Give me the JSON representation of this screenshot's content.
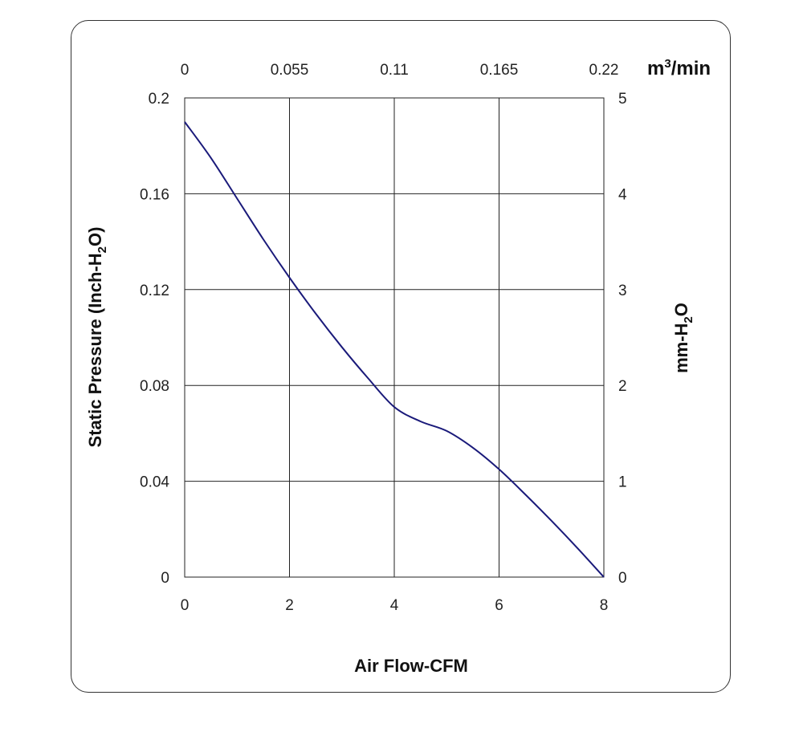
{
  "chart_data": {
    "type": "line",
    "xlabel": "Air Flow-CFM",
    "ylabel": "Static Pressure (Inch-H2O)",
    "ylabel_parts": [
      "Static Pressure (Inch-H",
      "2",
      "O)"
    ],
    "secondary_xlabel": "m3/min",
    "secondary_xlabel_parts": [
      "m",
      "3",
      "/min"
    ],
    "secondary_ylabel": "mm-H2O",
    "secondary_ylabel_parts": [
      "mm-H",
      "2",
      "O"
    ],
    "xlim": [
      0,
      8
    ],
    "ylim": [
      0,
      0.2
    ],
    "x_ticks": [
      "0",
      "2",
      "4",
      "6",
      "8"
    ],
    "y_ticks": [
      "0",
      "0.04",
      "0.08",
      "0.12",
      "0.16",
      "0.2"
    ],
    "top_ticks": [
      "0",
      "0.055",
      "0.11",
      "0.165",
      "0.22"
    ],
    "right_ticks": [
      "0",
      "1",
      "2",
      "3",
      "4",
      "5"
    ],
    "grid": true,
    "line_color": "#1a1a7a",
    "series": [
      {
        "x": [
          0,
          0.5,
          1,
          1.5,
          2,
          2.5,
          3,
          3.5,
          4,
          4.5,
          5,
          5.5,
          6,
          6.5,
          7,
          7.5,
          8
        ],
        "values": [
          0.19,
          0.175,
          0.158,
          0.141,
          0.125,
          0.11,
          0.096,
          0.083,
          0.071,
          0.065,
          0.061,
          0.054,
          0.045,
          0.0345,
          0.0235,
          0.012,
          0.0
        ]
      }
    ]
  }
}
